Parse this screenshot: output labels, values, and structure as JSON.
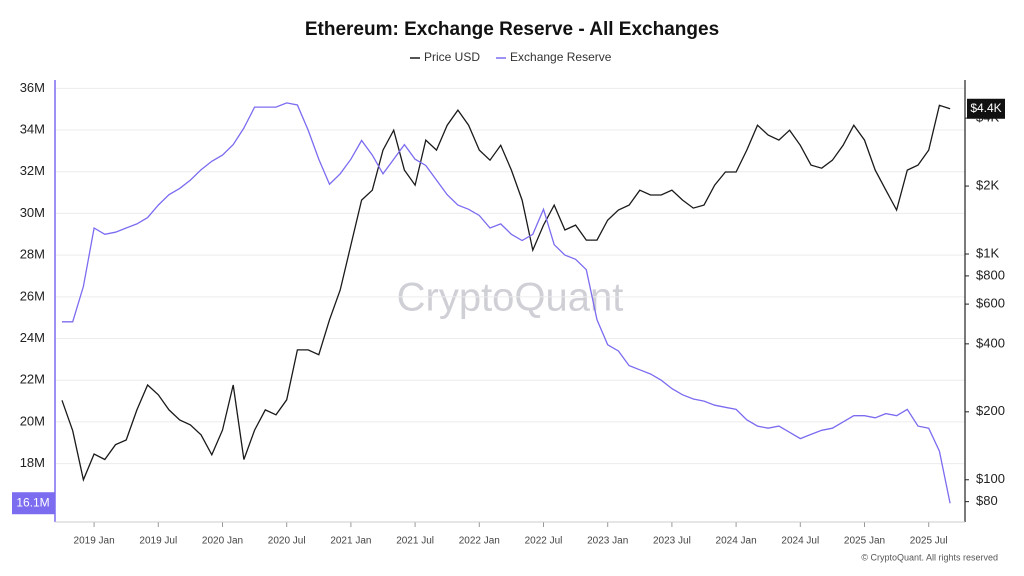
{
  "chart_data": {
    "type": "line",
    "title": "Ethereum: Exchange Reserve - All Exchanges",
    "watermark": "CryptoQuant",
    "credit": "© CryptoQuant. All rights reserved",
    "grid": true,
    "x": [
      "2018 Oct",
      "2018 Nov",
      "2018 Dec",
      "2019 Jan",
      "2019 Feb",
      "2019 Mar",
      "2019 Apr",
      "2019 May",
      "2019 Jun",
      "2019 Jul",
      "2019 Aug",
      "2019 Sep",
      "2019 Oct",
      "2019 Nov",
      "2019 Dec",
      "2020 Jan",
      "2020 Feb",
      "2020 Mar",
      "2020 Apr",
      "2020 May",
      "2020 Jun",
      "2020 Jul",
      "2020 Aug",
      "2020 Sep",
      "2020 Oct",
      "2020 Nov",
      "2020 Dec",
      "2021 Jan",
      "2021 Feb",
      "2021 Mar",
      "2021 Apr",
      "2021 May",
      "2021 Jun",
      "2021 Jul",
      "2021 Aug",
      "2021 Sep",
      "2021 Oct",
      "2021 Nov",
      "2021 Dec",
      "2022 Jan",
      "2022 Feb",
      "2022 Mar",
      "2022 Apr",
      "2022 May",
      "2022 Jun",
      "2022 Jul",
      "2022 Aug",
      "2022 Sep",
      "2022 Oct",
      "2022 Nov",
      "2022 Dec",
      "2023 Jan",
      "2023 Feb",
      "2023 Mar",
      "2023 Apr",
      "2023 May",
      "2023 Jun",
      "2023 Jul",
      "2023 Aug",
      "2023 Sep",
      "2023 Oct",
      "2023 Nov",
      "2023 Dec",
      "2024 Jan",
      "2024 Feb",
      "2024 Mar",
      "2024 Apr",
      "2024 May",
      "2024 Jun",
      "2024 Jul",
      "2024 Aug",
      "2024 Sep",
      "2024 Oct",
      "2024 Nov",
      "2024 Dec",
      "2025 Jan",
      "2025 Feb",
      "2025 Mar",
      "2025 Apr",
      "2025 May",
      "2025 Jun",
      "2025 Jul",
      "2025 Aug",
      "2025 Sep"
    ],
    "xticks": [
      "2019 Jan",
      "2019 Jul",
      "2020 Jan",
      "2020 Jul",
      "2021 Jan",
      "2021 Jul",
      "2022 Jan",
      "2022 Jul",
      "2023 Jan",
      "2023 Jul",
      "2024 Jan",
      "2024 Jul",
      "2025 Jan",
      "2025 Jul"
    ],
    "ylim": [
      15.2,
      36.4
    ],
    "yticks": [
      {
        "value": 18,
        "label": "18M"
      },
      {
        "value": 20,
        "label": "20M"
      },
      {
        "value": 22,
        "label": "22M"
      },
      {
        "value": 24,
        "label": "24M"
      },
      {
        "value": 26,
        "label": "26M"
      },
      {
        "value": 28,
        "label": "28M"
      },
      {
        "value": 30,
        "label": "30M"
      },
      {
        "value": 32,
        "label": "32M"
      },
      {
        "value": 34,
        "label": "34M"
      },
      {
        "value": 36,
        "label": "36M"
      }
    ],
    "y2lim": [
      65,
      5900
    ],
    "y2scale": "log",
    "y2ticks": [
      {
        "value": 80,
        "label": "$80"
      },
      {
        "value": 100,
        "label": "$100"
      },
      {
        "value": 200,
        "label": "$200"
      },
      {
        "value": 400,
        "label": "$400"
      },
      {
        "value": 600,
        "label": "$600"
      },
      {
        "value": 800,
        "label": "$800"
      },
      {
        "value": 1000,
        "label": "$1K"
      },
      {
        "value": 2000,
        "label": "$2K"
      },
      {
        "value": 4000,
        "label": "$4K"
      }
    ],
    "series": [
      {
        "name": "Price USD",
        "color": "#1a1a1a",
        "axis": "y2",
        "end_label": "$4.4K",
        "values": [
          225,
          165,
          100,
          130,
          123,
          143,
          150,
          204,
          263,
          238,
          204,
          184,
          175,
          158,
          129,
          166,
          263,
          123,
          166,
          204,
          194,
          226,
          376,
          376,
          358,
          511,
          693,
          1096,
          1733,
          1918,
          2885,
          3536,
          2353,
          2020,
          3195,
          2885,
          3720,
          4340,
          3720,
          2885,
          2605,
          3030,
          2353,
          1733,
          1041,
          1343,
          1647,
          1277,
          1343,
          1153,
          1153,
          1414,
          1566,
          1647,
          1918,
          1825,
          1825,
          1918,
          1733,
          1597,
          1647,
          2020,
          2308,
          2308,
          2885,
          3720,
          3363,
          3195,
          3536,
          3030,
          2477,
          2400,
          2605,
          3030,
          3720,
          3195,
          2353,
          1918,
          1566,
          2353,
          2477,
          2885,
          4560,
          4400
        ]
      },
      {
        "name": "Exchange Reserve",
        "color": "#7b6cf0",
        "axis": "y",
        "end_label": "16.1M",
        "values": [
          24.8,
          24.8,
          26.5,
          29.3,
          29.0,
          29.1,
          29.3,
          29.5,
          29.8,
          30.4,
          30.9,
          31.2,
          31.6,
          32.1,
          32.5,
          32.8,
          33.3,
          34.1,
          35.1,
          35.1,
          35.1,
          35.3,
          35.2,
          34.0,
          32.6,
          31.4,
          31.9,
          32.6,
          33.5,
          32.8,
          31.9,
          32.6,
          33.3,
          32.6,
          32.3,
          31.6,
          30.9,
          30.4,
          30.2,
          29.9,
          29.3,
          29.5,
          29.0,
          28.7,
          29.0,
          30.2,
          28.5,
          28.0,
          27.8,
          27.3,
          24.9,
          23.7,
          23.4,
          22.7,
          22.5,
          22.3,
          22.0,
          21.6,
          21.3,
          21.1,
          21.0,
          20.8,
          20.7,
          20.6,
          20.1,
          19.8,
          19.7,
          19.8,
          19.5,
          19.2,
          19.4,
          19.6,
          19.7,
          20.0,
          20.3,
          20.3,
          20.2,
          20.4,
          20.3,
          20.6,
          19.8,
          19.7,
          18.6,
          16.1
        ]
      }
    ]
  }
}
